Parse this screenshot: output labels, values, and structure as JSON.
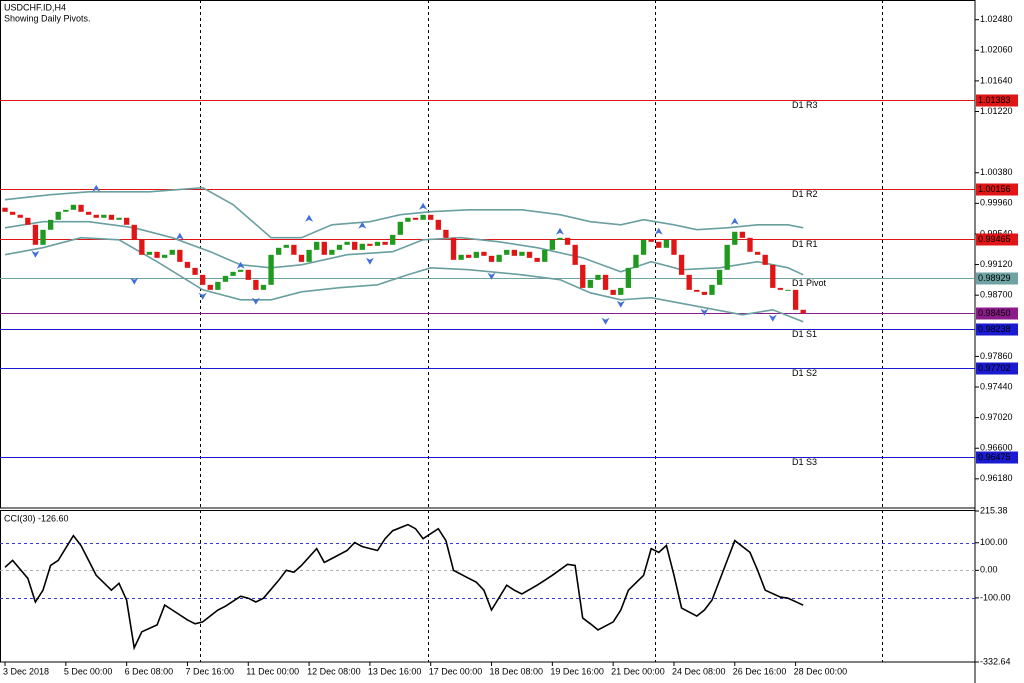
{
  "chart_data": [
    {
      "type": "candlestick",
      "title": "USDCHF.ID,H4",
      "subtitle": "Showing Daily Pivots.",
      "xlim": [
        -0.66,
        127.6
      ],
      "ylim": [
        0.9578,
        1.0275
      ],
      "yticks": [
        {
          "value": 1.0248,
          "label": "1.02480"
        },
        {
          "value": 1.0206,
          "label": "1.02060"
        },
        {
          "value": 1.0164,
          "label": "1.01640"
        },
        {
          "value": 1.0122,
          "label": "1.01220"
        },
        {
          "value": 1.0038,
          "label": "1.00380"
        },
        {
          "value": 0.9996,
          "label": "0.99960"
        },
        {
          "value": 0.9954,
          "label": "0.99540"
        },
        {
          "value": 0.9912,
          "label": "0.99120"
        },
        {
          "value": 0.987,
          "label": "0.98700"
        },
        {
          "value": 0.9786,
          "label": "0.97860"
        },
        {
          "value": 0.9744,
          "label": "0.97440"
        },
        {
          "value": 0.9702,
          "label": "0.97020"
        },
        {
          "value": 0.966,
          "label": "0.96600"
        },
        {
          "value": 0.9618,
          "label": "0.96180"
        }
      ],
      "up_color": "#1f9a1f",
      "down_color": "#e01515",
      "open": [
        0.999,
        0.99844,
        0.99803,
        0.99762,
        0.99666,
        0.99391,
        0.99597,
        0.99734,
        0.99844,
        0.99871,
        0.9994,
        0.99844,
        0.99803,
        0.99762,
        0.99803,
        0.99734,
        0.99762,
        0.99666,
        0.99459,
        0.99254,
        0.99295,
        0.99212,
        0.99254,
        0.99322,
        0.99157,
        0.99075,
        0.98979,
        0.98842,
        0.98773,
        0.98883,
        0.98965,
        0.9902,
        0.99048,
        0.9891,
        0.98773,
        0.98842,
        0.99254,
        0.9935,
        0.99391,
        0.99254,
        0.99157,
        0.99322,
        0.99432,
        0.99254,
        0.99322,
        0.99391,
        0.99432,
        0.99322,
        0.99405,
        0.99377,
        0.99432,
        0.99391,
        0.99528,
        0.99707,
        0.99762,
        0.99734,
        0.99803,
        0.99734,
        0.99597,
        0.99487,
        0.99185,
        0.99254,
        0.99212,
        0.99295,
        0.9924,
        0.99157,
        0.99254,
        0.99322,
        0.9924,
        0.99295,
        0.99212,
        0.99157,
        0.99322,
        0.99459,
        0.99487,
        0.99391,
        0.99116,
        0.988,
        0.9891,
        0.98979,
        0.98773,
        0.98704,
        0.988,
        0.99075,
        0.99254,
        0.99459,
        0.99432,
        0.9935,
        0.99459,
        0.99254,
        0.98979,
        0.98773,
        0.98746,
        0.98704,
        0.98842,
        0.99048,
        0.99391,
        0.9957,
        0.99487,
        0.99295,
        0.99254,
        0.99116,
        0.988,
        0.98773,
        0.98773,
        0.98499
      ],
      "close": [
        0.99844,
        0.99803,
        0.99762,
        0.99666,
        0.99391,
        0.99597,
        0.99734,
        0.99844,
        0.99871,
        0.9994,
        0.99844,
        0.99803,
        0.99762,
        0.99803,
        0.99734,
        0.99762,
        0.99666,
        0.99459,
        0.99254,
        0.99295,
        0.99212,
        0.99254,
        0.99322,
        0.99157,
        0.99075,
        0.98979,
        0.98842,
        0.98773,
        0.98883,
        0.98965,
        0.9902,
        0.99048,
        0.9891,
        0.98773,
        0.98842,
        0.99254,
        0.9935,
        0.99391,
        0.99254,
        0.99157,
        0.99322,
        0.99432,
        0.99254,
        0.99322,
        0.99391,
        0.99432,
        0.99322,
        0.99405,
        0.99377,
        0.99432,
        0.99391,
        0.99528,
        0.99707,
        0.99762,
        0.99734,
        0.99803,
        0.99734,
        0.99597,
        0.99487,
        0.99185,
        0.99254,
        0.99212,
        0.99295,
        0.9924,
        0.99157,
        0.99254,
        0.99322,
        0.9924,
        0.99295,
        0.99212,
        0.99157,
        0.99322,
        0.99459,
        0.99487,
        0.99391,
        0.99116,
        0.988,
        0.9891,
        0.98979,
        0.98773,
        0.98704,
        0.988,
        0.99075,
        0.99254,
        0.99459,
        0.99432,
        0.9935,
        0.99459,
        0.99254,
        0.98979,
        0.98773,
        0.98746,
        0.98704,
        0.98842,
        0.99048,
        0.99391,
        0.9957,
        0.99487,
        0.99295,
        0.99254,
        0.99116,
        0.988,
        0.98773,
        0.98773,
        0.98499,
        0.9845
      ],
      "series": [
        {
          "color": "#6a9fa0",
          "x": [
            0,
            6,
            11,
            19,
            26,
            30,
            35,
            39,
            43,
            48,
            52,
            56,
            61,
            68,
            73,
            77,
            81,
            84,
            88,
            91,
            95,
            99,
            103,
            105
          ],
          "values": [
            1.0001,
            1.00078,
            1.00119,
            1.00119,
            1.00174,
            0.99941,
            0.99488,
            0.99488,
            0.99666,
            0.99708,
            0.99804,
            0.99845,
            0.99872,
            0.99872,
            0.99804,
            0.99708,
            0.99666,
            0.99735,
            0.99666,
            0.99598,
            0.99625,
            0.99666,
            0.99666,
            0.99625
          ]
        },
        {
          "color": "#6a9fa0",
          "x": [
            0,
            5,
            11,
            17,
            22,
            27,
            31,
            35,
            39,
            45,
            51,
            55,
            60,
            65,
            70,
            76,
            81,
            85,
            89,
            94,
            99,
            103,
            105
          ],
          "values": [
            0.99625,
            0.99708,
            0.99708,
            0.99625,
            0.99488,
            0.99296,
            0.99117,
            0.99076,
            0.99117,
            0.99255,
            0.99296,
            0.9946,
            0.99488,
            0.99433,
            0.99351,
            0.99213,
            0.99021,
            0.99159,
            0.99049,
            0.99076,
            0.99159,
            0.99076,
            0.9898
          ]
        },
        {
          "color": "#6a9fa0",
          "x": [
            0,
            5,
            10,
            15,
            20,
            26,
            31,
            35,
            39,
            44,
            49,
            53,
            56,
            61,
            68,
            73,
            77,
            81,
            85,
            90,
            97,
            101,
            105
          ],
          "values": [
            0.99255,
            0.99351,
            0.99488,
            0.9946,
            0.99159,
            0.98774,
            0.98637,
            0.98637,
            0.98747,
            0.98802,
            0.98843,
            0.9898,
            0.99076,
            0.99049,
            0.9898,
            0.98912,
            0.98733,
            0.98637,
            0.98665,
            0.98568,
            0.98431,
            0.985,
            0.98335
          ]
        }
      ],
      "fractals": {
        "color": "#3f6fd8",
        "up": {
          "x": [
            12,
            23,
            31,
            40,
            47,
            55,
            73,
            86,
            96
          ],
          "values": [
            1.00215,
            0.99557,
            0.99159,
            0.99804,
            0.99708,
            0.99968,
            0.99625,
            0.99625,
            0.99762
          ]
        },
        "down": {
          "x": [
            4,
            17,
            26,
            33,
            48,
            64,
            79,
            81,
            92,
            101
          ],
          "values": [
            0.99213,
            0.98843,
            0.98637,
            0.98569,
            0.99117,
            0.98912,
            0.98294,
            0.98527,
            0.98417,
            0.98335
          ]
        }
      },
      "levels": {
        "names": [
          "D1 R3",
          "D1 R2",
          "D1 R1",
          "D1 Pivot",
          null,
          "D1 S1",
          "D1 S2",
          "D1 S3"
        ],
        "values": [
          1.01383,
          1.00156,
          0.99465,
          0.98929,
          0.9845,
          0.98238,
          0.97702,
          0.96475
        ],
        "value_labels": [
          "1.01383",
          "1.00156",
          "0.99465",
          "0.98929",
          "0.98450",
          "0.98238",
          "0.97702",
          "0.96475"
        ],
        "colors": [
          "#e01515",
          "#e01515",
          "#e01515",
          "#6fa3a3",
          "#8b1a8b",
          "#1a1ad0",
          "#1a1ad0",
          "#1a1ad0"
        ]
      }
    },
    {
      "type": "line",
      "title": "CCI(30) -126.60",
      "xlim": [
        -0.66,
        127.6
      ],
      "xticks": [
        {
          "value": 0,
          "label": "3 Dec 2018"
        },
        {
          "value": 8,
          "label": "5 Dec 00:00"
        },
        {
          "value": 16,
          "label": "6 Dec 08:00"
        },
        {
          "value": 24,
          "label": "7 Dec 16:00"
        },
        {
          "value": 32,
          "label": "11 Dec 00:00"
        },
        {
          "value": 40,
          "label": "12 Dec 08:00"
        },
        {
          "value": 48,
          "label": "13 Dec 16:00"
        },
        {
          "value": 56,
          "label": "17 Dec 00:00"
        },
        {
          "value": 64,
          "label": "18 Dec 08:00"
        },
        {
          "value": 72,
          "label": "19 Dec 16:00"
        },
        {
          "value": 80,
          "label": "21 Dec 00:00"
        },
        {
          "value": 88,
          "label": "24 Dec 08:00"
        },
        {
          "value": 96,
          "label": "26 Dec 16:00"
        },
        {
          "value": 104,
          "label": "28 Dec 00:00"
        }
      ],
      "ylim": [
        -332.64,
        215.38
      ],
      "yticks": [
        215.38,
        {
          "value": 100,
          "label": "100.00"
        },
        {
          "value": 0,
          "label": "0.00"
        },
        {
          "value": -100,
          "label": "-100.00"
        },
        -332.64
      ],
      "levels": {
        "values": [
          100,
          0,
          -100
        ],
        "colors": [
          "#3a3ad0",
          "#b0b0b0",
          "#3a3ad0"
        ]
      },
      "series": [
        {
          "color": "#000000",
          "x": [
            0,
            1,
            3,
            4,
            5,
            6,
            7,
            9,
            10,
            11,
            12,
            14,
            15,
            16,
            17,
            18,
            20,
            21,
            22,
            24,
            25,
            26,
            28,
            29,
            31,
            32,
            33,
            34,
            36,
            37,
            38,
            39,
            41,
            42,
            43,
            45,
            46,
            47,
            49,
            50,
            51,
            53,
            54,
            55,
            57,
            58,
            59,
            61,
            62,
            63,
            64,
            66,
            67,
            68,
            70,
            71,
            72,
            74,
            75,
            76,
            77,
            78,
            80,
            81,
            82,
            84,
            85,
            86,
            87,
            88,
            89,
            91,
            92,
            93,
            95,
            96,
            98,
            99,
            100,
            102,
            103,
            105
          ],
          "values": [
            11,
            36,
            -29,
            -115,
            -72,
            18,
            36,
            126,
            90,
            36,
            -18,
            -72,
            -47,
            -108,
            -281,
            -223,
            -198,
            -126,
            -144,
            -180,
            -194,
            -187,
            -144,
            -130,
            -94,
            -101,
            -115,
            -101,
            -36,
            0,
            -7,
            18,
            79,
            29,
            43,
            72,
            101,
            86,
            72,
            115,
            144,
            166,
            151,
            115,
            151,
            108,
            0,
            -29,
            -43,
            -72,
            -144,
            -54,
            -72,
            -86,
            -54,
            -36,
            -18,
            22,
            18,
            -173,
            -194,
            -216,
            -187,
            -144,
            -72,
            -18,
            79,
            65,
            90,
            -18,
            -137,
            -166,
            -144,
            -108,
            36,
            108,
            65,
            0,
            -72,
            -97,
            -101,
            -126.6
          ]
        }
      ]
    }
  ]
}
